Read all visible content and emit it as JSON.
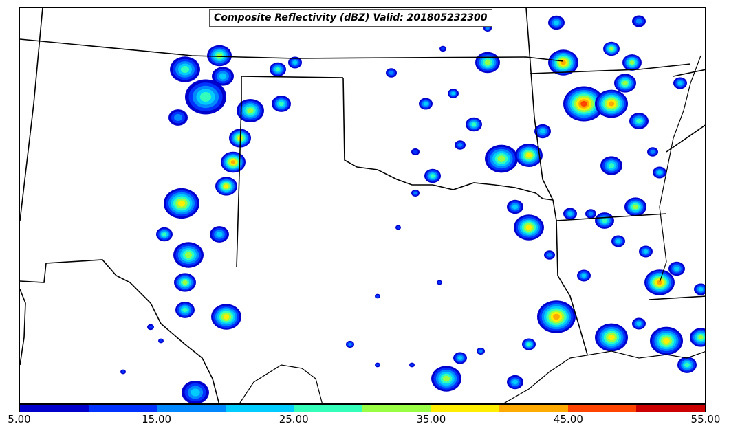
{
  "title": "Composite Reflectivity (dBZ) Valid: 201805232300",
  "colorbar": {
    "colors": [
      "#0000cc",
      "#0033ff",
      "#0088ff",
      "#00ccff",
      "#33ffbb",
      "#99ff44",
      "#ffee00",
      "#ffaa00",
      "#ff4400",
      "#cc0000"
    ],
    "labels": [
      "5.00",
      "15.00",
      "25.00",
      "35.00",
      "45.00",
      "55.00"
    ]
  },
  "legend_levels": [
    {
      "dbz": 5,
      "color": "#0000cc"
    },
    {
      "dbz": 10,
      "color": "#0033ff"
    },
    {
      "dbz": 15,
      "color": "#0088ff"
    },
    {
      "dbz": 20,
      "color": "#00ccff"
    },
    {
      "dbz": 25,
      "color": "#33ffbb"
    },
    {
      "dbz": 30,
      "color": "#99ff44"
    },
    {
      "dbz": 35,
      "color": "#ffee00"
    },
    {
      "dbz": 40,
      "color": "#ffaa00"
    },
    {
      "dbz": 45,
      "color": "#ff4400"
    },
    {
      "dbz": 50,
      "color": "#cc0000"
    }
  ]
}
